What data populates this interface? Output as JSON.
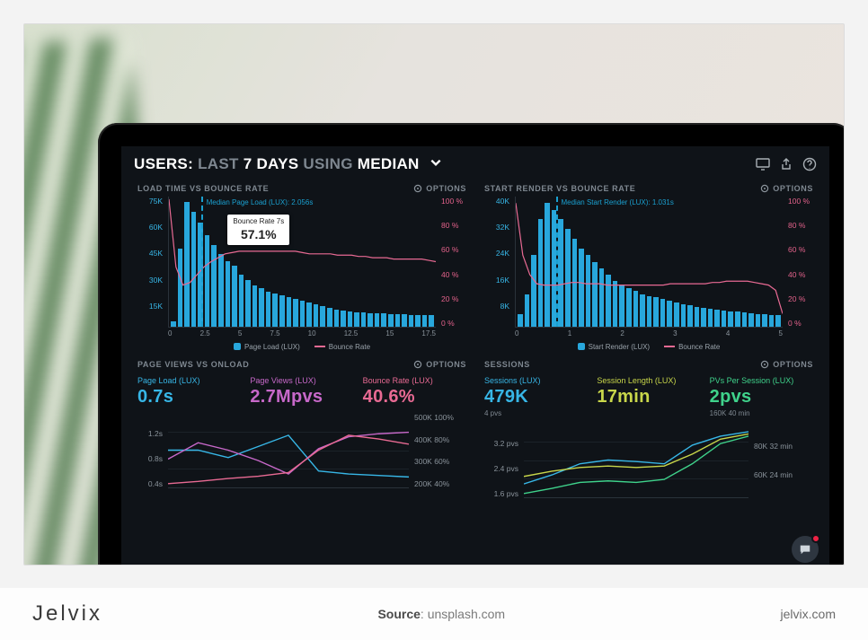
{
  "caption": {
    "brand": "Jelvix",
    "source_label": "Source",
    "source_value": "unsplash.com",
    "site": "jelvix.com"
  },
  "header": {
    "prefix": "USERS:",
    "mid1": "LAST",
    "strong1": "7 DAYS",
    "mid2": "USING",
    "strong2": "MEDIAN"
  },
  "options_label": "OPTIONS",
  "chart_left": {
    "title": "LOAD TIME VS BOUNCE RATE",
    "type": "bar+line",
    "y_left_ticks": [
      "75K",
      "60K",
      "45K",
      "30K",
      "15K",
      ""
    ],
    "y_left_max": 75,
    "y_right_ticks": [
      "100 %",
      "80 %",
      "60 %",
      "40 %",
      "20 %",
      "0 %"
    ],
    "x_ticks": [
      "0",
      "2.5",
      "5",
      "7.5",
      "10",
      "12.5",
      "15",
      "17.5"
    ],
    "bar_color": "#28a7dc",
    "bars": [
      3,
      45,
      72,
      66,
      60,
      53,
      47,
      42,
      38,
      35,
      30,
      27,
      24,
      22,
      20,
      19,
      18,
      17,
      16,
      15,
      14,
      13,
      12,
      11,
      10,
      9.5,
      9,
      8.5,
      8.2,
      8,
      7.8,
      7.6,
      7.4,
      7.2,
      7,
      6.9,
      6.8,
      6.7,
      6.6
    ],
    "line_color": "#e86a93",
    "line": [
      98,
      46,
      32,
      34,
      40,
      46,
      50,
      53,
      56,
      57,
      58,
      58,
      58,
      58,
      58,
      58,
      58,
      58,
      58,
      57,
      56,
      56,
      56,
      56,
      55,
      55,
      55,
      54,
      54,
      53,
      53,
      53,
      52,
      52,
      52,
      52,
      52,
      51,
      50
    ],
    "median_pos_pct": 12,
    "median_label": "Median Page Load (LUX): 2.056s",
    "tooltip_pos": {
      "left_pct": 22,
      "top_pct": 14
    },
    "tooltip_label": "Bounce Rate 7s",
    "tooltip_value": "57.1%",
    "legend": [
      {
        "type": "box",
        "color": "#28a7dc",
        "label": "Page Load (LUX)"
      },
      {
        "type": "line",
        "color": "#e86a93",
        "label": "Bounce Rate"
      }
    ]
  },
  "chart_right": {
    "title": "START RENDER VS BOUNCE RATE",
    "type": "bar+line",
    "y_left_ticks": [
      "40K",
      "32K",
      "24K",
      "16K",
      "8K",
      ""
    ],
    "y_left_max": 40,
    "y_right_ticks": [
      "100 %",
      "80 %",
      "60 %",
      "40 %",
      "20 %",
      "0 %"
    ],
    "x_ticks": [
      "0",
      "1",
      "2",
      "3",
      "4",
      "5"
    ],
    "bar_color": "#28a7dc",
    "bars": [
      4,
      10,
      22,
      33,
      38,
      36,
      33,
      30,
      27,
      24,
      22,
      20,
      18,
      16,
      14,
      13,
      12,
      11,
      10,
      9.5,
      9,
      8.5,
      8,
      7.5,
      7,
      6.5,
      6,
      5.7,
      5.4,
      5.2,
      5,
      4.8,
      4.6,
      4.4,
      4.2,
      4,
      3.8,
      3.6,
      3.5
    ],
    "line_color": "#e86a93",
    "line": [
      95,
      55,
      40,
      33,
      32,
      32,
      32,
      33,
      34,
      34,
      33,
      33,
      33,
      32,
      32,
      32,
      32,
      32,
      32,
      32,
      32,
      32,
      33,
      33,
      33,
      33,
      33,
      33,
      34,
      34,
      35,
      35,
      35,
      35,
      34,
      33,
      32,
      28,
      10
    ],
    "median_pos_pct": 15,
    "median_label": "Median Start Render (LUX): 1.031s",
    "legend": [
      {
        "type": "box",
        "color": "#28a7dc",
        "label": "Start Render (LUX)"
      },
      {
        "type": "line",
        "color": "#e86a93",
        "label": "Bounce Rate"
      }
    ]
  },
  "panel_bl": {
    "title": "PAGE VIEWS VS ONLOAD",
    "metrics": [
      {
        "label": "Page Load (LUX)",
        "value": "0.7s",
        "color": "#37b6e6"
      },
      {
        "label": "Page Views (LUX)",
        "value": "2.7Mpvs",
        "color": "#c768c9"
      },
      {
        "label": "Bounce Rate (LUX)",
        "value": "40.6%",
        "color": "#e86a93"
      }
    ],
    "y_left": [
      "",
      "1.2s",
      "0.8s",
      "0.4s"
    ],
    "y_right": [
      "500K  100%",
      "400K  80%",
      "300K  60%",
      "200K  40%"
    ],
    "lines": [
      {
        "color": "#37b6e6",
        "points": [
          50,
          50,
          60,
          45,
          30,
          78,
          82,
          84,
          86
        ]
      },
      {
        "color": "#c768c9",
        "points": [
          62,
          40,
          50,
          64,
          82,
          48,
          32,
          28,
          26
        ]
      },
      {
        "color": "#e86a93",
        "points": [
          95,
          92,
          88,
          85,
          80,
          50,
          30,
          35,
          42
        ]
      }
    ]
  },
  "panel_br": {
    "title": "SESSIONS",
    "metrics": [
      {
        "label": "Sessions (LUX)",
        "value": "479K",
        "sub": "4 pvs",
        "color": "#37b6e6"
      },
      {
        "label": "Session Length (LUX)",
        "value": "17min",
        "sub": "",
        "color": "#c8d64a"
      },
      {
        "label": "PVs Per Session (LUX)",
        "value": "2pvs",
        "sub": "160K  40 min",
        "color": "#3fd28b"
      }
    ],
    "y_left": [
      "",
      "3.2 pvs",
      "2.4 pvs",
      "1.6 pvs"
    ],
    "y_right": [
      "",
      "80K  32 min",
      "60K  24 min",
      ""
    ],
    "lines": [
      {
        "color": "#37b6e6",
        "points": [
          82,
          70,
          55,
          50,
          52,
          55,
          30,
          18,
          12
        ]
      },
      {
        "color": "#c8d64a",
        "points": [
          72,
          65,
          60,
          58,
          60,
          58,
          42,
          22,
          15
        ]
      },
      {
        "color": "#3fd28b",
        "points": [
          95,
          88,
          80,
          78,
          80,
          76,
          55,
          28,
          18
        ]
      }
    ]
  }
}
